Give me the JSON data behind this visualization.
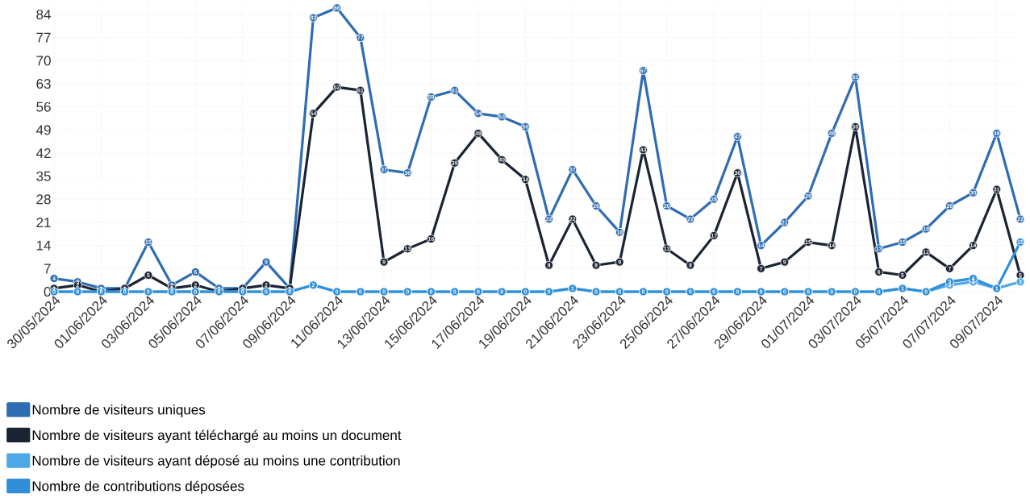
{
  "chart_data": {
    "type": "line",
    "categories": [
      "30/05/2024",
      null,
      "01/06/2024",
      null,
      "03/06/2024",
      null,
      "05/06/2024",
      null,
      "07/06/2024",
      null,
      "09/06/2024",
      null,
      "11/06/2024",
      null,
      "13/06/2024",
      null,
      "15/06/2024",
      null,
      "17/06/2024",
      null,
      "19/06/2024",
      null,
      "21/06/2024",
      null,
      "23/06/2024",
      null,
      "25/06/2024",
      null,
      "27/06/2024",
      null,
      "29/06/2024",
      null,
      "01/07/2024",
      null,
      "03/07/2024",
      null,
      "05/07/2024",
      null,
      "07/07/2024",
      null,
      "09/07/2024",
      null
    ],
    "series": [
      {
        "name": "Nombre de visiteurs uniques",
        "color": "#2f6db3",
        "values": [
          4,
          3,
          1,
          1,
          15,
          2,
          6,
          1,
          1,
          9,
          1,
          83,
          86,
          77,
          37,
          36,
          59,
          61,
          54,
          53,
          50,
          22,
          37,
          26,
          18,
          67,
          26,
          22,
          28,
          47,
          14,
          21,
          29,
          48,
          65,
          13,
          15,
          19,
          26,
          30,
          48,
          22
        ],
        "value_labels": [
          "4",
          "3",
          "1",
          "1",
          "15",
          "2",
          "6",
          "1",
          "1",
          "9",
          "1",
          "83",
          "86",
          "77",
          "37",
          "36",
          "59",
          "61",
          "54",
          "53",
          "50",
          "22",
          "37",
          "26",
          "18",
          "67",
          "26",
          "22",
          "28",
          "47",
          "14",
          "21",
          "29",
          "48",
          "65",
          "13",
          "15",
          "19",
          "26",
          "30",
          "48",
          "22"
        ]
      },
      {
        "name": "Nombre de visiteurs ayant téléchargé au moins un document",
        "color": "#1a2433",
        "values": [
          1,
          2,
          0,
          1,
          5,
          1,
          2,
          0,
          1,
          2,
          1,
          54,
          62,
          61,
          9,
          13,
          16,
          39,
          48,
          40,
          34,
          8,
          22,
          8,
          9,
          43,
          13,
          8,
          17,
          36,
          7,
          9,
          15,
          14,
          50,
          6,
          5,
          12,
          7,
          14,
          31,
          5
        ],
        "value_labels": [
          "1",
          "2",
          "0",
          null,
          "5",
          "1",
          "2",
          "0",
          null,
          "2",
          null,
          "54",
          "62",
          "61",
          "9",
          "13",
          "16",
          "39",
          "48",
          "40",
          "34",
          "8",
          "22",
          "8",
          "9",
          "43",
          "13",
          "8",
          "17",
          "36",
          "7",
          "9",
          "15",
          "14",
          "50",
          "6",
          "5",
          "12",
          "7",
          "14",
          "31",
          "5"
        ]
      },
      {
        "name": "Nombre de visiteurs ayant déposé au moins une contribution",
        "color": "#4ea8e8",
        "values": [
          0,
          0,
          0,
          0,
          0,
          0,
          0,
          0,
          0,
          0,
          0,
          2,
          0,
          0,
          0,
          0,
          0,
          0,
          0,
          0,
          0,
          0,
          1,
          0,
          0,
          0,
          0,
          0,
          0,
          0,
          0,
          0,
          0,
          0,
          0,
          0,
          1,
          0,
          2,
          3,
          1,
          3
        ],
        "value_labels": [
          "0",
          "0",
          null,
          "0",
          "0",
          "0",
          "0",
          null,
          "0",
          "0",
          "0",
          "2",
          "0",
          "0",
          "0",
          "0",
          "0",
          "0",
          "0",
          "0",
          "0",
          "0",
          "1",
          "0",
          "0",
          "0",
          "0",
          "0",
          "0",
          "0",
          "0",
          "0",
          "0",
          "0",
          "0",
          "0",
          "1",
          "0",
          "2",
          "3",
          "1",
          "3"
        ]
      },
      {
        "name": "Nombre de contributions déposées",
        "color": "#2f8fd8",
        "values": [
          0,
          0,
          0,
          0,
          0,
          0,
          0,
          0,
          0,
          0,
          0,
          2,
          0,
          0,
          0,
          0,
          0,
          0,
          0,
          0,
          0,
          0,
          1,
          0,
          0,
          0,
          0,
          0,
          0,
          0,
          0,
          0,
          0,
          0,
          0,
          0,
          1,
          0,
          3,
          4,
          1,
          15
        ],
        "value_labels": [
          null,
          null,
          null,
          null,
          null,
          null,
          null,
          null,
          null,
          null,
          null,
          null,
          null,
          null,
          null,
          null,
          null,
          null,
          null,
          null,
          null,
          null,
          null,
          null,
          null,
          null,
          null,
          null,
          null,
          null,
          null,
          null,
          null,
          null,
          null,
          null,
          null,
          null,
          "3",
          "4",
          null,
          "15"
        ]
      }
    ],
    "ylim": [
      0,
      88
    ],
    "yticks": [
      0,
      7,
      14,
      21,
      28,
      35,
      42,
      49,
      56,
      63,
      70,
      77,
      84
    ],
    "grid": true,
    "legend": "bottom",
    "marker": "circle",
    "line_style": "solid"
  }
}
